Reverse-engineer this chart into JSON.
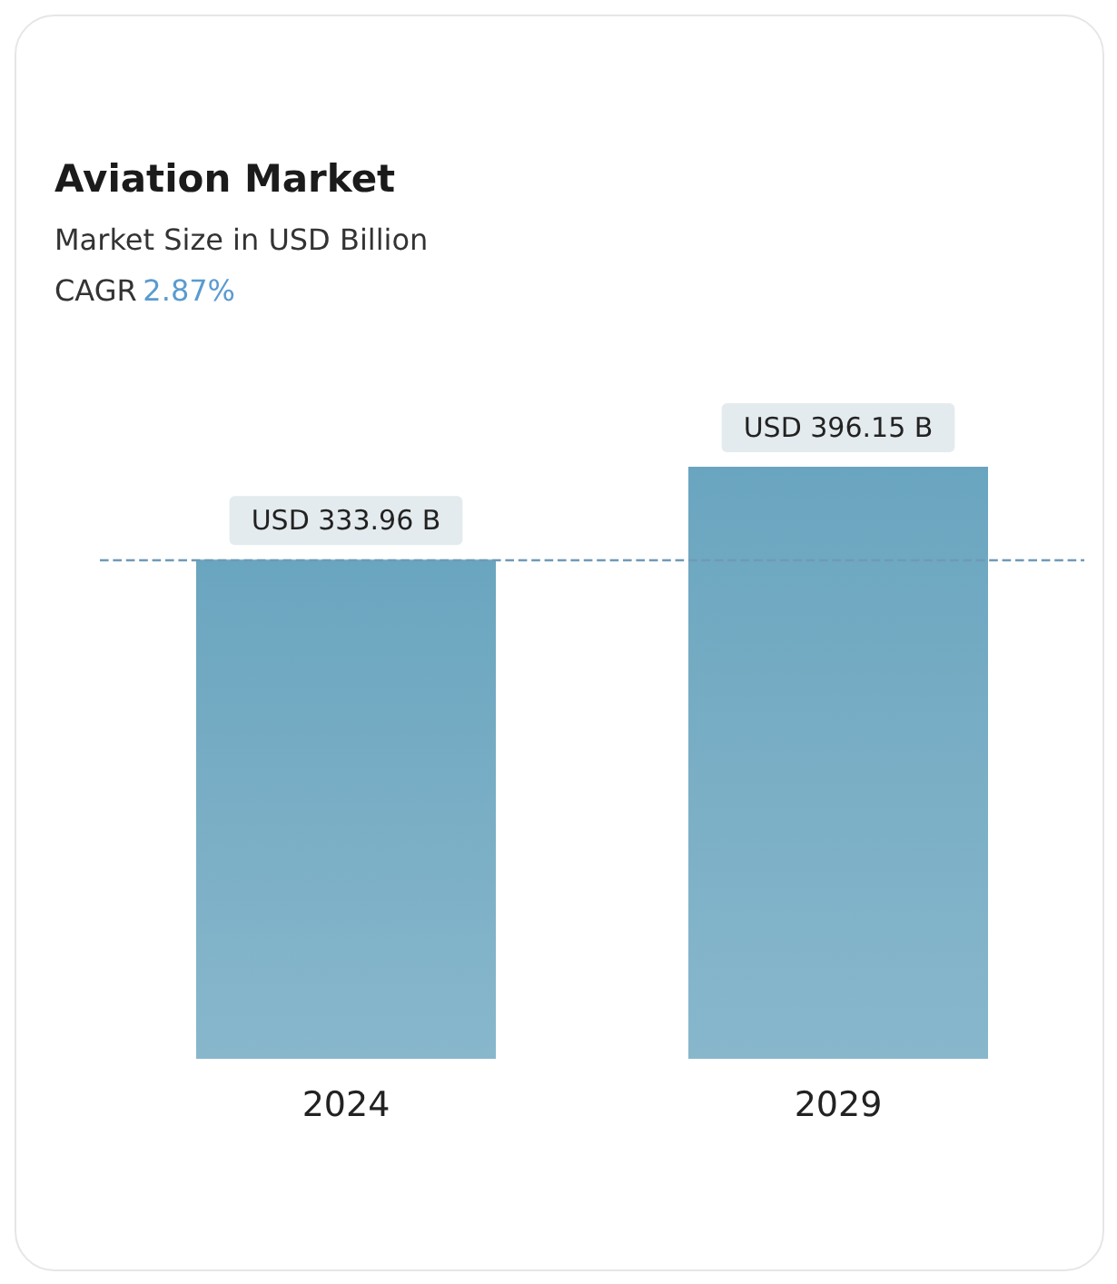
{
  "chart_data": {
    "type": "bar",
    "title": "Aviation Market",
    "subtitle": "Market Size in USD Billion",
    "annotations": [
      "CAGR 2.87%"
    ],
    "categories": [
      "2024",
      "2029"
    ],
    "series": [
      {
        "color": "#6aa5bf",
        "values": [
          333.96,
          396.15
        ],
        "value_labels": [
          "USD 333.96 B",
          "USD 396.15 B"
        ]
      }
    ],
    "ref_lines": [
      {
        "axis": "y",
        "value": 333.96,
        "color": "#6f9ab8",
        "line_style": "dashed"
      }
    ],
    "tick_labels": "x",
    "grid": false
  }
}
